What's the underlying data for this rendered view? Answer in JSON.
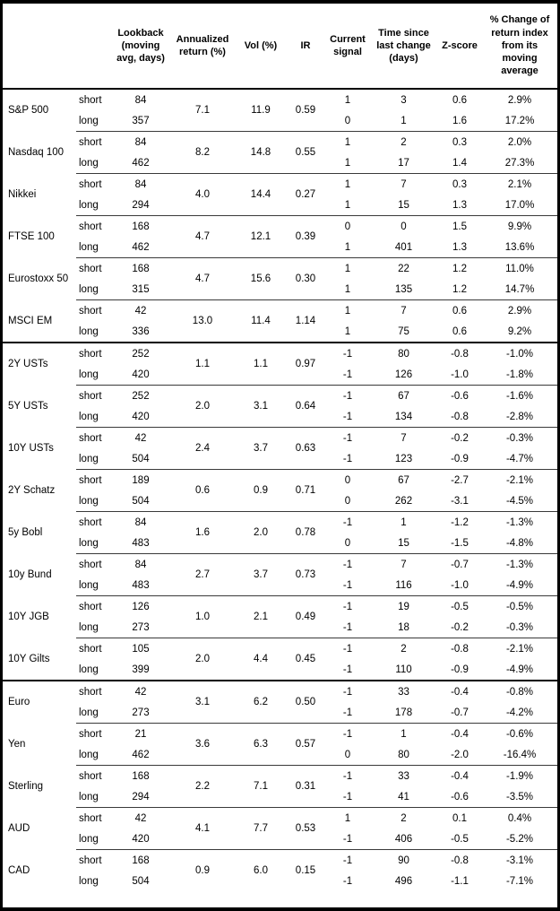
{
  "table": {
    "headers": {
      "name": "",
      "horizon": "",
      "lookback": "Lookback\n(moving\navg, days)",
      "ann_return": "Annualized\nreturn (%)",
      "vol": "Vol (%)",
      "ir": "IR",
      "signal": "Current\nsignal",
      "time": "Time since\nlast change\n(days)",
      "zscore": "Z-score",
      "pct": "% Change of\nreturn index\nfrom its\nmoving\naverage"
    },
    "groups": [
      {
        "name": "equity-indices",
        "assets": [
          {
            "name": "S&P 500",
            "ann_return": "7.1",
            "vol": "11.9",
            "ir": "0.59",
            "rows": [
              {
                "horizon": "short",
                "lookback": "84",
                "signal": "1",
                "time": "3",
                "zscore": "0.6",
                "pct": "2.9%"
              },
              {
                "horizon": "long",
                "lookback": "357",
                "signal": "0",
                "time": "1",
                "zscore": "1.6",
                "pct": "17.2%"
              }
            ]
          },
          {
            "name": "Nasdaq 100",
            "ann_return": "8.2",
            "vol": "14.8",
            "ir": "0.55",
            "rows": [
              {
                "horizon": "short",
                "lookback": "84",
                "signal": "1",
                "time": "2",
                "zscore": "0.3",
                "pct": "2.0%"
              },
              {
                "horizon": "long",
                "lookback": "462",
                "signal": "1",
                "time": "17",
                "zscore": "1.4",
                "pct": "27.3%"
              }
            ]
          },
          {
            "name": "Nikkei",
            "ann_return": "4.0",
            "vol": "14.4",
            "ir": "0.27",
            "rows": [
              {
                "horizon": "short",
                "lookback": "84",
                "signal": "1",
                "time": "7",
                "zscore": "0.3",
                "pct": "2.1%"
              },
              {
                "horizon": "long",
                "lookback": "294",
                "signal": "1",
                "time": "15",
                "zscore": "1.3",
                "pct": "17.0%"
              }
            ]
          },
          {
            "name": "FTSE 100",
            "ann_return": "4.7",
            "vol": "12.1",
            "ir": "0.39",
            "rows": [
              {
                "horizon": "short",
                "lookback": "168",
                "signal": "0",
                "time": "0",
                "zscore": "1.5",
                "pct": "9.9%"
              },
              {
                "horizon": "long",
                "lookback": "462",
                "signal": "1",
                "time": "401",
                "zscore": "1.3",
                "pct": "13.6%"
              }
            ]
          },
          {
            "name": "Eurostoxx 50",
            "ann_return": "4.7",
            "vol": "15.6",
            "ir": "0.30",
            "rows": [
              {
                "horizon": "short",
                "lookback": "168",
                "signal": "1",
                "time": "22",
                "zscore": "1.2",
                "pct": "11.0%"
              },
              {
                "horizon": "long",
                "lookback": "315",
                "signal": "1",
                "time": "135",
                "zscore": "1.2",
                "pct": "14.7%"
              }
            ]
          },
          {
            "name": "MSCI EM",
            "ann_return": "13.0",
            "vol": "11.4",
            "ir": "1.14",
            "rows": [
              {
                "horizon": "short",
                "lookback": "42",
                "signal": "1",
                "time": "7",
                "zscore": "0.6",
                "pct": "2.9%"
              },
              {
                "horizon": "long",
                "lookback": "336",
                "signal": "1",
                "time": "75",
                "zscore": "0.6",
                "pct": "9.2%"
              }
            ]
          }
        ]
      },
      {
        "name": "government-bonds",
        "assets": [
          {
            "name": "2Y USTs",
            "ann_return": "1.1",
            "vol": "1.1",
            "ir": "0.97",
            "rows": [
              {
                "horizon": "short",
                "lookback": "252",
                "signal": "-1",
                "time": "80",
                "zscore": "-0.8",
                "pct": "-1.0%"
              },
              {
                "horizon": "long",
                "lookback": "420",
                "signal": "-1",
                "time": "126",
                "zscore": "-1.0",
                "pct": "-1.8%"
              }
            ]
          },
          {
            "name": "5Y USTs",
            "ann_return": "2.0",
            "vol": "3.1",
            "ir": "0.64",
            "rows": [
              {
                "horizon": "short",
                "lookback": "252",
                "signal": "-1",
                "time": "67",
                "zscore": "-0.6",
                "pct": "-1.6%"
              },
              {
                "horizon": "long",
                "lookback": "420",
                "signal": "-1",
                "time": "134",
                "zscore": "-0.8",
                "pct": "-2.8%"
              }
            ]
          },
          {
            "name": "10Y USTs",
            "ann_return": "2.4",
            "vol": "3.7",
            "ir": "0.63",
            "rows": [
              {
                "horizon": "short",
                "lookback": "42",
                "signal": "-1",
                "time": "7",
                "zscore": "-0.2",
                "pct": "-0.3%"
              },
              {
                "horizon": "long",
                "lookback": "504",
                "signal": "-1",
                "time": "123",
                "zscore": "-0.9",
                "pct": "-4.7%"
              }
            ]
          },
          {
            "name": "2Y Schatz",
            "ann_return": "0.6",
            "vol": "0.9",
            "ir": "0.71",
            "rows": [
              {
                "horizon": "short",
                "lookback": "189",
                "signal": "0",
                "time": "67",
                "zscore": "-2.7",
                "pct": "-2.1%"
              },
              {
                "horizon": "long",
                "lookback": "504",
                "signal": "0",
                "time": "262",
                "zscore": "-3.1",
                "pct": "-4.5%"
              }
            ]
          },
          {
            "name": "5y Bobl",
            "ann_return": "1.6",
            "vol": "2.0",
            "ir": "0.78",
            "rows": [
              {
                "horizon": "short",
                "lookback": "84",
                "signal": "-1",
                "time": "1",
                "zscore": "-1.2",
                "pct": "-1.3%"
              },
              {
                "horizon": "long",
                "lookback": "483",
                "signal": "0",
                "time": "15",
                "zscore": "-1.5",
                "pct": "-4.8%"
              }
            ]
          },
          {
            "name": "10y Bund",
            "ann_return": "2.7",
            "vol": "3.7",
            "ir": "0.73",
            "rows": [
              {
                "horizon": "short",
                "lookback": "84",
                "signal": "-1",
                "time": "7",
                "zscore": "-0.7",
                "pct": "-1.3%"
              },
              {
                "horizon": "long",
                "lookback": "483",
                "signal": "-1",
                "time": "116",
                "zscore": "-1.0",
                "pct": "-4.9%"
              }
            ]
          },
          {
            "name": "10Y JGB",
            "ann_return": "1.0",
            "vol": "2.1",
            "ir": "0.49",
            "rows": [
              {
                "horizon": "short",
                "lookback": "126",
                "signal": "-1",
                "time": "19",
                "zscore": "-0.5",
                "pct": "-0.5%"
              },
              {
                "horizon": "long",
                "lookback": "273",
                "signal": "-1",
                "time": "18",
                "zscore": "-0.2",
                "pct": "-0.3%"
              }
            ]
          },
          {
            "name": "10Y Gilts",
            "ann_return": "2.0",
            "vol": "4.4",
            "ir": "0.45",
            "rows": [
              {
                "horizon": "short",
                "lookback": "105",
                "signal": "-1",
                "time": "2",
                "zscore": "-0.8",
                "pct": "-2.1%"
              },
              {
                "horizon": "long",
                "lookback": "399",
                "signal": "-1",
                "time": "110",
                "zscore": "-0.9",
                "pct": "-4.9%"
              }
            ]
          }
        ]
      },
      {
        "name": "currencies",
        "assets": [
          {
            "name": "Euro",
            "ann_return": "3.1",
            "vol": "6.2",
            "ir": "0.50",
            "rows": [
              {
                "horizon": "short",
                "lookback": "42",
                "signal": "-1",
                "time": "33",
                "zscore": "-0.4",
                "pct": "-0.8%"
              },
              {
                "horizon": "long",
                "lookback": "273",
                "signal": "-1",
                "time": "178",
                "zscore": "-0.7",
                "pct": "-4.2%"
              }
            ]
          },
          {
            "name": "Yen",
            "ann_return": "3.6",
            "vol": "6.3",
            "ir": "0.57",
            "rows": [
              {
                "horizon": "short",
                "lookback": "21",
                "signal": "-1",
                "time": "1",
                "zscore": "-0.4",
                "pct": "-0.6%"
              },
              {
                "horizon": "long",
                "lookback": "462",
                "signal": "0",
                "time": "80",
                "zscore": "-2.0",
                "pct": "-16.4%"
              }
            ]
          },
          {
            "name": "Sterling",
            "ann_return": "2.2",
            "vol": "7.1",
            "ir": "0.31",
            "rows": [
              {
                "horizon": "short",
                "lookback": "168",
                "signal": "-1",
                "time": "33",
                "zscore": "-0.4",
                "pct": "-1.9%"
              },
              {
                "horizon": "long",
                "lookback": "294",
                "signal": "-1",
                "time": "41",
                "zscore": "-0.6",
                "pct": "-3.5%"
              }
            ]
          },
          {
            "name": "AUD",
            "ann_return": "4.1",
            "vol": "7.7",
            "ir": "0.53",
            "rows": [
              {
                "horizon": "short",
                "lookback": "42",
                "signal": "1",
                "time": "2",
                "zscore": "0.1",
                "pct": "0.4%"
              },
              {
                "horizon": "long",
                "lookback": "420",
                "signal": "-1",
                "time": "406",
                "zscore": "-0.5",
                "pct": "-5.2%"
              }
            ]
          },
          {
            "name": "CAD",
            "ann_return": "0.9",
            "vol": "6.0",
            "ir": "0.15",
            "rows": [
              {
                "horizon": "short",
                "lookback": "168",
                "signal": "-1",
                "time": "90",
                "zscore": "-0.8",
                "pct": "-3.1%"
              },
              {
                "horizon": "long",
                "lookback": "504",
                "signal": "-1",
                "time": "496",
                "zscore": "-1.1",
                "pct": "-7.1%"
              }
            ]
          }
        ]
      }
    ]
  }
}
